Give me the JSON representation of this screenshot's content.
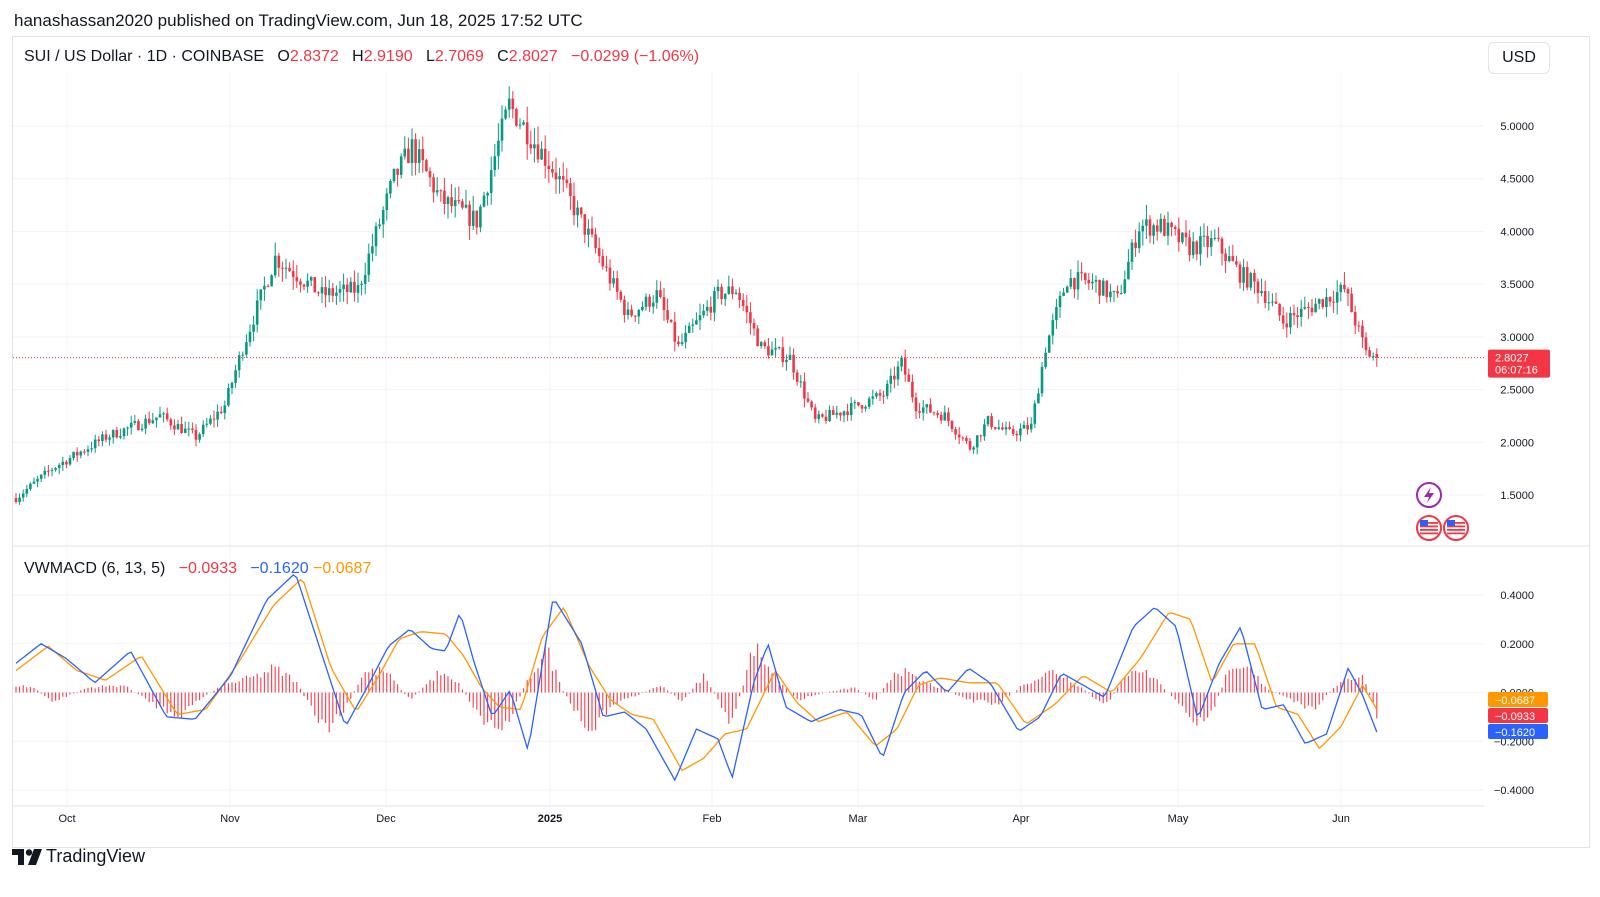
{
  "header": {
    "publisher": "hanashassan2020 published on TradingView.com, Jun 18, 2025 17:52 UTC"
  },
  "price_legend": {
    "symbol": "SUI / US Dollar · 1D · COINBASE",
    "o_label": "O",
    "o_value": "2.8372",
    "h_label": "H",
    "h_value": "2.9190",
    "l_label": "L",
    "l_value": "2.7069",
    "c_label": "C",
    "c_value": "2.8027",
    "change": "−0.0299 (−1.06%)"
  },
  "currency_button": "USD",
  "last_price": {
    "value": "2.8027",
    "countdown": "06:07:16"
  },
  "indicator_legend": {
    "name": "VWMACD (6, 13, 5)",
    "hist": "−0.0933",
    "macd": "−0.1620",
    "signal": "−0.0687"
  },
  "indicator_tags": {
    "signal": "−0.0687",
    "hist": "−0.0933",
    "macd": "−0.1620"
  },
  "colors": {
    "up": "#089981",
    "down": "#f23645",
    "macd": "#2962ff",
    "signal": "#ff9800",
    "grid": "#f0f3fa"
  },
  "icons": [
    "lightning-icon",
    "us-flag-icon",
    "us-flag-icon"
  ],
  "footer": {
    "brand": "TradingView"
  },
  "chart_data": [
    {
      "type": "candlestick",
      "title": "SUI / US Dollar · 1D · COINBASE",
      "y_ticks": [
        "5.0000",
        "4.5000",
        "4.0000",
        "3.5000",
        "3.0000",
        "2.5000",
        "2.0000",
        "1.5000"
      ],
      "x_ticks": [
        "Oct",
        "Nov",
        "Dec",
        "2025",
        "Feb",
        "Mar",
        "Apr",
        "May",
        "Jun"
      ],
      "ylim": [
        1.05,
        5.5
      ],
      "close_keypoints": [
        [
          0,
          1.47
        ],
        [
          10,
          1.75
        ],
        [
          25,
          2.05
        ],
        [
          40,
          2.25
        ],
        [
          50,
          2.05
        ],
        [
          58,
          2.35
        ],
        [
          63,
          2.9
        ],
        [
          72,
          3.75
        ],
        [
          85,
          3.4
        ],
        [
          95,
          3.45
        ],
        [
          105,
          4.5
        ],
        [
          110,
          4.8
        ],
        [
          118,
          4.3
        ],
        [
          128,
          4.1
        ],
        [
          137,
          5.2
        ],
        [
          143,
          4.9
        ],
        [
          150,
          4.55
        ],
        [
          160,
          3.9
        ],
        [
          170,
          3.2
        ],
        [
          178,
          3.4
        ],
        [
          184,
          2.9
        ],
        [
          195,
          3.4
        ],
        [
          200,
          3.45
        ],
        [
          207,
          2.9
        ],
        [
          215,
          2.8
        ],
        [
          222,
          2.2
        ],
        [
          230,
          2.3
        ],
        [
          241,
          2.45
        ],
        [
          246,
          2.75
        ],
        [
          250,
          2.35
        ],
        [
          258,
          2.25
        ],
        [
          265,
          1.95
        ],
        [
          270,
          2.2
        ],
        [
          276,
          2.08
        ],
        [
          282,
          2.15
        ],
        [
          286,
          2.9
        ],
        [
          292,
          3.55
        ],
        [
          300,
          3.5
        ],
        [
          306,
          3.35
        ],
        [
          312,
          4.05
        ],
        [
          318,
          4.05
        ],
        [
          326,
          3.85
        ],
        [
          333,
          3.9
        ],
        [
          340,
          3.6
        ],
        [
          346,
          3.45
        ],
        [
          352,
          3.15
        ],
        [
          358,
          3.25
        ],
        [
          363,
          3.35
        ],
        [
          369,
          3.45
        ],
        [
          375,
          2.85
        ],
        [
          378,
          2.8027
        ]
      ],
      "price_range": [
        1.4,
        5.35
      ]
    },
    {
      "type": "line",
      "title": "VWMACD (6, 13, 5)",
      "series": [
        {
          "name": "MACD",
          "color": "#2962ff",
          "keypoints": [
            [
              0,
              0.12
            ],
            [
              7,
              0.2
            ],
            [
              14,
              0.14
            ],
            [
              22,
              0.04
            ],
            [
              32,
              0.17
            ],
            [
              42,
              -0.1
            ],
            [
              50,
              -0.11
            ],
            [
              60,
              0.07
            ],
            [
              70,
              0.38
            ],
            [
              78,
              0.49
            ],
            [
              86,
              0.13
            ],
            [
              92,
              -0.14
            ],
            [
              98,
              0.02
            ],
            [
              104,
              0.19
            ],
            [
              110,
              0.26
            ],
            [
              116,
              0.18
            ],
            [
              120,
              0.17
            ],
            [
              124,
              0.33
            ],
            [
              128,
              0.12
            ],
            [
              133,
              -0.1
            ],
            [
              138,
              0.01
            ],
            [
              143,
              -0.24
            ],
            [
              150,
              0.39
            ],
            [
              158,
              0.2
            ],
            [
              164,
              -0.1
            ],
            [
              170,
              -0.08
            ],
            [
              176,
              -0.15
            ],
            [
              184,
              -0.36
            ],
            [
              190,
              -0.15
            ],
            [
              196,
              -0.19
            ],
            [
              200,
              -0.35
            ],
            [
              206,
              0.04
            ],
            [
              210,
              0.2
            ],
            [
              215,
              -0.06
            ],
            [
              222,
              -0.12
            ],
            [
              230,
              -0.07
            ],
            [
              236,
              -0.09
            ],
            [
              242,
              -0.27
            ],
            [
              248,
              0.0
            ],
            [
              254,
              0.09
            ],
            [
              260,
              0.0
            ],
            [
              266,
              0.1
            ],
            [
              272,
              0.04
            ],
            [
              280,
              -0.16
            ],
            [
              286,
              -0.1
            ],
            [
              292,
              0.08
            ],
            [
              298,
              0.03
            ],
            [
              304,
              -0.02
            ],
            [
              312,
              0.27
            ],
            [
              318,
              0.35
            ],
            [
              324,
              0.27
            ],
            [
              330,
              -0.11
            ],
            [
              336,
              0.12
            ],
            [
              342,
              0.27
            ],
            [
              348,
              -0.07
            ],
            [
              354,
              -0.05
            ],
            [
              360,
              -0.21
            ],
            [
              366,
              -0.17
            ],
            [
              372,
              0.1
            ],
            [
              376,
              -0.01
            ],
            [
              380,
              -0.162
            ]
          ]
        },
        {
          "name": "Signal",
          "color": "#ff9800",
          "keypoints": [
            [
              0,
              0.09
            ],
            [
              9,
              0.19
            ],
            [
              17,
              0.09
            ],
            [
              25,
              0.05
            ],
            [
              35,
              0.15
            ],
            [
              45,
              -0.09
            ],
            [
              53,
              -0.07
            ],
            [
              62,
              0.12
            ],
            [
              72,
              0.36
            ],
            [
              80,
              0.47
            ],
            [
              88,
              0.1
            ],
            [
              95,
              -0.08
            ],
            [
              101,
              0.06
            ],
            [
              107,
              0.22
            ],
            [
              113,
              0.25
            ],
            [
              120,
              0.24
            ],
            [
              125,
              0.15
            ],
            [
              130,
              0.02
            ],
            [
              135,
              -0.06
            ],
            [
              141,
              -0.07
            ],
            [
              147,
              0.23
            ],
            [
              153,
              0.35
            ],
            [
              160,
              0.11
            ],
            [
              166,
              -0.03
            ],
            [
              172,
              -0.09
            ],
            [
              178,
              -0.11
            ],
            [
              186,
              -0.32
            ],
            [
              192,
              -0.27
            ],
            [
              198,
              -0.17
            ],
            [
              204,
              -0.15
            ],
            [
              212,
              0.09
            ],
            [
              218,
              -0.04
            ],
            [
              224,
              -0.12
            ],
            [
              232,
              -0.08
            ],
            [
              240,
              -0.22
            ],
            [
              246,
              -0.15
            ],
            [
              252,
              0.03
            ],
            [
              258,
              0.06
            ],
            [
              266,
              0.04
            ],
            [
              274,
              0.04
            ],
            [
              282,
              -0.13
            ],
            [
              290,
              -0.05
            ],
            [
              298,
              0.07
            ],
            [
              306,
              -0.0
            ],
            [
              314,
              0.14
            ],
            [
              322,
              0.33
            ],
            [
              328,
              0.3
            ],
            [
              334,
              0.04
            ],
            [
              340,
              0.2
            ],
            [
              346,
              0.2
            ],
            [
              352,
              -0.06
            ],
            [
              358,
              -0.09
            ],
            [
              364,
              -0.23
            ],
            [
              370,
              -0.14
            ],
            [
              376,
              0.03
            ],
            [
              380,
              -0.0687
            ]
          ]
        },
        {
          "name": "Histogram",
          "color": "#f23645",
          "keypoints": [
            [
              0,
              0.03
            ],
            [
              5,
              0.02
            ],
            [
              10,
              -0.04
            ],
            [
              20,
              0.02
            ],
            [
              30,
              0.03
            ],
            [
              40,
              -0.06
            ],
            [
              46,
              -0.09
            ],
            [
              52,
              -0.02
            ],
            [
              58,
              0.03
            ],
            [
              68,
              0.07
            ],
            [
              72,
              0.1
            ],
            [
              78,
              0.05
            ],
            [
              86,
              -0.16
            ],
            [
              92,
              -0.07
            ],
            [
              97,
              0.08
            ],
            [
              103,
              0.09
            ],
            [
              110,
              -0.03
            ],
            [
              118,
              0.08
            ],
            [
              124,
              0.03
            ],
            [
              130,
              -0.11
            ],
            [
              136,
              -0.15
            ],
            [
              143,
              0.05
            ],
            [
              148,
              0.18
            ],
            [
              153,
              0.0
            ],
            [
              160,
              -0.18
            ],
            [
              166,
              -0.05
            ],
            [
              172,
              -0.02
            ],
            [
              180,
              0.03
            ],
            [
              186,
              -0.04
            ],
            [
              192,
              0.07
            ],
            [
              200,
              -0.13
            ],
            [
              206,
              0.19
            ],
            [
              212,
              0.07
            ],
            [
              218,
              -0.03
            ],
            [
              226,
              0.0
            ],
            [
              234,
              0.02
            ],
            [
              240,
              -0.03
            ],
            [
              246,
              0.1
            ],
            [
              252,
              0.05
            ],
            [
              258,
              0.02
            ],
            [
              266,
              -0.03
            ],
            [
              274,
              -0.05
            ],
            [
              282,
              0.04
            ],
            [
              290,
              0.09
            ],
            [
              296,
              0.04
            ],
            [
              304,
              -0.06
            ],
            [
              312,
              0.11
            ],
            [
              318,
              0.06
            ],
            [
              326,
              -0.07
            ],
            [
              332,
              -0.15
            ],
            [
              338,
              0.07
            ],
            [
              344,
              0.1
            ],
            [
              350,
              0.01
            ],
            [
              356,
              -0.03
            ],
            [
              362,
              -0.07
            ],
            [
              370,
              0.05
            ],
            [
              376,
              0.07
            ],
            [
              380,
              -0.0933
            ]
          ]
        }
      ],
      "y_ticks": [
        "0.4000",
        "0.2000",
        "0.0000",
        "−0.2000",
        "−0.4000"
      ],
      "ylim": [
        -0.42,
        0.42
      ]
    }
  ]
}
